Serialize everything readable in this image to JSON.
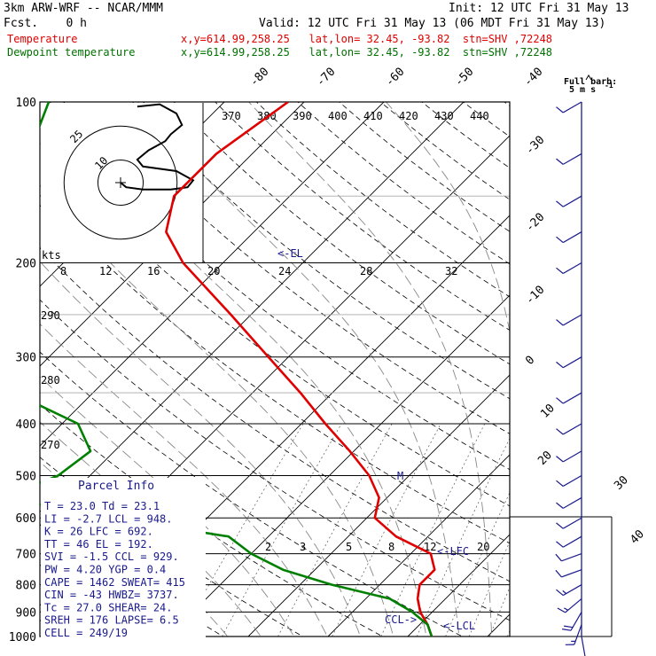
{
  "header": {
    "model": "3km ARW-WRF -- NCAR/MMM",
    "init": "Init: 12 UTC Fri 31 May 13",
    "fcst": "Fcst.    0 h",
    "valid": "Valid: 12 UTC Fri 31 May 13 (06 MDT Fri 31 May 13)",
    "full_barb": "Full barb:",
    "full_barb_units": "5 m s",
    "full_barb_exp": "-1"
  },
  "legend": [
    {
      "label": "Temperature",
      "info": "x,y=614.99,258.25   lat,lon= 32.45, -93.82  stn=SHV ,72248",
      "color": "#e00000"
    },
    {
      "label": "Dewpoint temperature",
      "info": "x,y=614.99,258.25   lat,lon= 32.45, -93.82  stn=SHV ,72248",
      "color": "#007000"
    }
  ],
  "parcel_info": {
    "title": "Parcel Info",
    "rows": [
      "T  =   23.0 Td =  23.1",
      "LI =   -2.7 LCL =  948.",
      "K  =     26 LFC =  692.",
      "TT =     46 EL  =  192.",
      "SVI =  -1.5 CCL =  929.",
      "PW =   4.20 YGP =   0.4",
      "CAPE =  1462 SWEAT=  415",
      "CIN =   -43 HWBZ= 3737.",
      "Tc =   27.0 SHEAR=  24.",
      "SREH =  176 LAPSE=  6.5",
      "CELL = 249/19"
    ]
  },
  "annotations": {
    "el": "<-EL",
    "lfc": "<-LFC",
    "lcl": "<-LCL",
    "ccl": "CCL->",
    "m_marker": "M"
  },
  "hodograph": {
    "units": "kts",
    "ring_labels": [
      "25",
      "10"
    ],
    "points": [
      [
        0,
        0
      ],
      [
        1,
        -2
      ],
      [
        4,
        -3
      ],
      [
        9,
        -3
      ],
      [
        12,
        -2
      ],
      [
        13,
        1
      ],
      [
        10,
        5
      ],
      [
        4,
        7
      ],
      [
        3,
        10
      ],
      [
        5,
        14
      ],
      [
        8,
        18
      ],
      [
        9,
        21
      ],
      [
        11,
        25
      ],
      [
        10,
        30
      ],
      [
        7,
        34
      ],
      [
        3,
        33
      ]
    ]
  },
  "chart_data": {
    "type": "line",
    "title": "",
    "xlabel": "",
    "ylabel": "",
    "diagram": "skew-T log-P",
    "ylim": [
      1000,
      100
    ],
    "pressure_ticks": [
      100,
      200,
      300,
      400,
      500,
      600,
      700,
      800,
      900,
      1000
    ],
    "isotherm_labels": [
      "-80",
      "-70",
      "-60",
      "-50",
      "-40",
      "-30",
      "-20",
      "-10",
      "0",
      "10",
      "20",
      "30",
      "40"
    ],
    "theta_labels_top": [
      "370",
      "380",
      "390",
      "400",
      "410",
      "420",
      "430",
      "440"
    ],
    "theta_labels_left": [
      "290",
      "280",
      "270"
    ],
    "mixing_ratio_labels_200": [
      "8",
      "12",
      "16",
      "20",
      "24",
      "28",
      "32"
    ],
    "mixing_ratio_labels_700": [
      "2",
      "3",
      "5",
      "8",
      "12",
      "20"
    ],
    "series": [
      {
        "name": "Temperature",
        "color": "#e00000",
        "points": [
          [
            1000,
            23.0
          ],
          [
            950,
            21.0
          ],
          [
            900,
            18.5
          ],
          [
            850,
            16.5
          ],
          [
            800,
            15.0
          ],
          [
            750,
            15.0
          ],
          [
            700,
            12.5
          ],
          [
            650,
            6.0
          ],
          [
            600,
            1.0
          ],
          [
            550,
            -1.0
          ],
          [
            500,
            -5.0
          ],
          [
            450,
            -10.5
          ],
          [
            400,
            -17.0
          ],
          [
            350,
            -24.0
          ],
          [
            300,
            -32.5
          ],
          [
            250,
            -42.5
          ],
          [
            200,
            -55.0
          ],
          [
            175,
            -61.0
          ],
          [
            150,
            -64.5
          ],
          [
            125,
            -64.5
          ],
          [
            100,
            -62.0
          ]
        ]
      },
      {
        "name": "Dewpoint temperature",
        "color": "#008000",
        "points": [
          [
            1000,
            23.0
          ],
          [
            950,
            21.0
          ],
          [
            900,
            17.5
          ],
          [
            850,
            13.0
          ],
          [
            800,
            4.0
          ],
          [
            750,
            -4.0
          ],
          [
            700,
            -10.0
          ],
          [
            650,
            -15.0
          ],
          [
            600,
            -32.0
          ],
          [
            550,
            -48.0
          ],
          [
            500,
            -44.0
          ],
          [
            450,
            -43.0
          ],
          [
            400,
            -48.0
          ],
          [
            350,
            -60.0
          ],
          [
            300,
            -70.0
          ],
          [
            250,
            -76.0
          ],
          [
            200,
            -80.0
          ],
          [
            150,
            -84.0
          ],
          [
            125,
            -88.0
          ],
          [
            100,
            -92.0
          ]
        ]
      }
    ],
    "wind_barbs": [
      {
        "p": 1000,
        "speed": 5,
        "dir": 170
      },
      {
        "p": 950,
        "speed": 15,
        "dir": 200
      },
      {
        "p": 900,
        "speed": 20,
        "dir": 210
      },
      {
        "p": 850,
        "speed": 15,
        "dir": 230
      },
      {
        "p": 800,
        "speed": 15,
        "dir": 240
      },
      {
        "p": 750,
        "speed": 10,
        "dir": 250
      },
      {
        "p": 700,
        "speed": 10,
        "dir": 250
      },
      {
        "p": 650,
        "speed": 10,
        "dir": 240
      },
      {
        "p": 600,
        "speed": 10,
        "dir": 240
      },
      {
        "p": 550,
        "speed": 10,
        "dir": 240
      },
      {
        "p": 500,
        "speed": 10,
        "dir": 240
      },
      {
        "p": 450,
        "speed": 10,
        "dir": 240
      },
      {
        "p": 400,
        "speed": 10,
        "dir": 240
      },
      {
        "p": 350,
        "speed": 10,
        "dir": 240
      },
      {
        "p": 300,
        "speed": 10,
        "dir": 240
      },
      {
        "p": 250,
        "speed": 10,
        "dir": 240
      },
      {
        "p": 200,
        "speed": 10,
        "dir": 240
      },
      {
        "p": 175,
        "speed": 10,
        "dir": 240
      },
      {
        "p": 150,
        "speed": 10,
        "dir": 240
      },
      {
        "p": 125,
        "speed": 10,
        "dir": 240
      },
      {
        "p": 100,
        "speed": 10,
        "dir": 240
      }
    ]
  }
}
